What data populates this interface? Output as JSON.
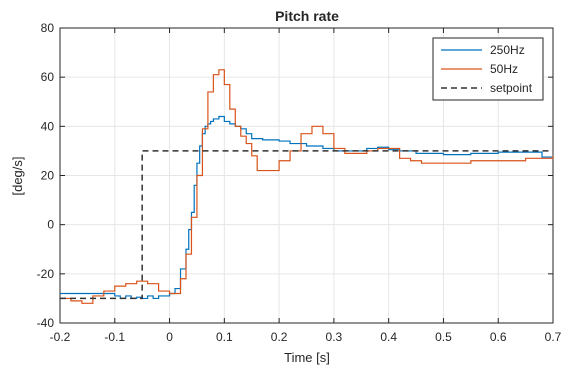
{
  "chart_data": {
    "type": "line",
    "title": "Pitch rate",
    "xlabel": "Time [s]",
    "ylabel": "[deg/s]",
    "xlim": [
      -0.2,
      0.7
    ],
    "ylim": [
      -40,
      80
    ],
    "xticks": [
      -0.2,
      -0.1,
      0,
      0.1,
      0.2,
      0.3,
      0.4,
      0.5,
      0.6,
      0.7
    ],
    "xtick_labels": [
      "-0.2",
      "-0.1",
      "0",
      "0.1",
      "0.2",
      "0.3",
      "0.4",
      "0.5",
      "0.6",
      "0.7"
    ],
    "yticks": [
      -40,
      -20,
      0,
      20,
      40,
      60,
      80
    ],
    "ytick_labels": [
      "-40",
      "-20",
      "0",
      "20",
      "40",
      "60",
      "80"
    ],
    "grid": true,
    "legend_position": "top-right",
    "series": [
      {
        "name": "250Hz",
        "color": "#0072BD",
        "style": "step",
        "dash": "solid",
        "x": [
          -0.2,
          -0.1,
          -0.09,
          -0.08,
          -0.07,
          -0.06,
          -0.05,
          -0.04,
          -0.03,
          -0.02,
          -0.01,
          0.0,
          0.01,
          0.02,
          0.03,
          0.035,
          0.04,
          0.045,
          0.05,
          0.055,
          0.06,
          0.065,
          0.07,
          0.075,
          0.08,
          0.09,
          0.1,
          0.11,
          0.12,
          0.13,
          0.14,
          0.15,
          0.16,
          0.17,
          0.2,
          0.22,
          0.25,
          0.28,
          0.3,
          0.33,
          0.36,
          0.38,
          0.4,
          0.42,
          0.45,
          0.5,
          0.55,
          0.6,
          0.65,
          0.68,
          0.7
        ],
        "y": [
          -28,
          -29,
          -30,
          -29,
          -30,
          -29.5,
          -30,
          -29,
          -30,
          -29,
          -29,
          -28,
          -26,
          -18,
          -10,
          -2,
          5,
          16,
          25,
          32,
          37,
          40,
          41,
          42,
          43,
          44,
          42,
          41,
          40,
          39,
          37,
          35,
          35,
          34.5,
          34,
          33,
          32,
          31,
          30,
          30,
          31,
          31.5,
          30.5,
          30,
          29,
          28.5,
          29,
          29.5,
          29.5,
          27.5,
          27
        ]
      },
      {
        "name": "50Hz",
        "color": "#D95319",
        "style": "step",
        "dash": "solid",
        "x": [
          -0.2,
          -0.18,
          -0.16,
          -0.14,
          -0.12,
          -0.1,
          -0.08,
          -0.06,
          -0.04,
          -0.02,
          0.0,
          0.02,
          0.03,
          0.04,
          0.05,
          0.06,
          0.07,
          0.08,
          0.09,
          0.1,
          0.11,
          0.12,
          0.13,
          0.14,
          0.15,
          0.16,
          0.18,
          0.2,
          0.22,
          0.24,
          0.26,
          0.28,
          0.3,
          0.32,
          0.34,
          0.36,
          0.38,
          0.4,
          0.42,
          0.44,
          0.46,
          0.5,
          0.55,
          0.6,
          0.65,
          0.7
        ],
        "y": [
          -30,
          -31,
          -32,
          -29,
          -27,
          -25,
          -24,
          -23,
          -24,
          -27,
          -28,
          -22,
          -12,
          3,
          20,
          39,
          54,
          61,
          63,
          57,
          47,
          40,
          36,
          33,
          28,
          22,
          22,
          26,
          30,
          37,
          40,
          37,
          31,
          29,
          29,
          30,
          31,
          31,
          27,
          26,
          25,
          25,
          26,
          26,
          27,
          28
        ]
      },
      {
        "name": "setpoint",
        "color": "#333333",
        "style": "step",
        "dash": "dashed",
        "x": [
          -0.2,
          -0.05,
          -0.05,
          0.7
        ],
        "y": [
          -30,
          -30,
          30,
          30
        ]
      }
    ]
  }
}
